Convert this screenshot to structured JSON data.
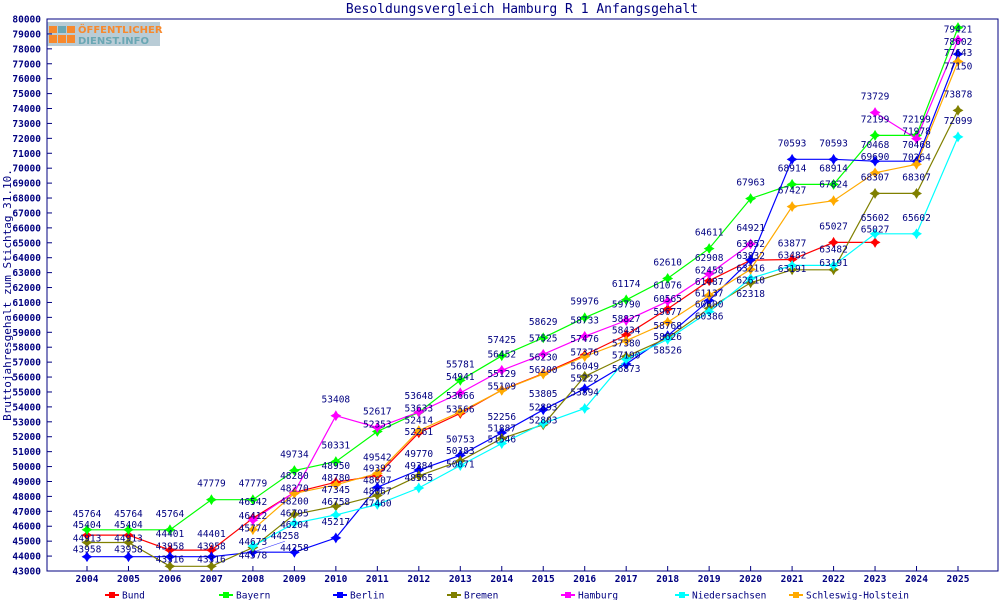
{
  "chart_data": {
    "type": "line",
    "title": "Besoldungsvergleich Hamburg R 1 Anfangsgehalt",
    "ylabel": "Bruttojahresgehalt zum Stichtag 31.10.",
    "xlabel": "",
    "ylim": [
      43000,
      80000
    ],
    "ytick_step": 1000,
    "grid": false,
    "legend_position": "bottom",
    "x": [
      2004,
      2005,
      2006,
      2007,
      2008,
      2009,
      2010,
      2011,
      2012,
      2013,
      2014,
      2015,
      2016,
      2017,
      2018,
      2019,
      2020,
      2021,
      2022,
      2023,
      2024,
      2025
    ],
    "series": [
      {
        "name": "Bund",
        "color": "#ff0000",
        "values": [
          45404,
          45404,
          44401,
          44401,
          46542,
          48270,
          48950,
          49392,
          52261,
          53566,
          55129,
          56230,
          57476,
          58827,
          60565,
          62458,
          63832,
          63877,
          65027,
          65027,
          null,
          null
        ]
      },
      {
        "name": "Bayern",
        "color": "#00ff00",
        "values": [
          45764,
          45764,
          45764,
          47779,
          47779,
          49734,
          50331,
          52353,
          53633,
          55781,
          57425,
          58629,
          59976,
          61174,
          62610,
          64611,
          67963,
          68914,
          68914,
          72199,
          72199,
          79421
        ]
      },
      {
        "name": "Berlin",
        "color": "#0000ff",
        "values": [
          43958,
          43958,
          43958,
          43958,
          44258,
          44258,
          45217,
          48607,
          49770,
          50753,
          52256,
          53805,
          55222,
          56873,
          58768,
          61137,
          63852,
          70593,
          70593,
          70468,
          70468,
          77643
        ]
      },
      {
        "name": "Bremen",
        "color": "#808000",
        "values": [
          44913,
          44913,
          43316,
          43316,
          44578,
          46795,
          47345,
          48067,
          49384,
          50383,
          51887,
          52803,
          56049,
          57380,
          58626,
          60600,
          62318,
          63191,
          63191,
          68307,
          68307,
          73878
        ]
      },
      {
        "name": "Hamburg",
        "color": "#ff00ff",
        "values": [
          null,
          null,
          null,
          null,
          46412,
          48280,
          53408,
          52617,
          53648,
          54941,
          56452,
          57525,
          58733,
          59790,
          61076,
          62908,
          64921,
          null,
          null,
          73729,
          71978,
          78602
        ]
      },
      {
        "name": "Niedersachsen",
        "color": "#00ffff",
        "values": [
          null,
          null,
          null,
          null,
          44673,
          46204,
          46758,
          47460,
          48565,
          50071,
          51546,
          52893,
          53894,
          57190,
          58526,
          60386,
          62610,
          63482,
          63482,
          65602,
          65602,
          72099
        ]
      },
      {
        "name": "Schleswig-Holstein",
        "color": "#ffaa00",
        "values": [
          null,
          null,
          null,
          null,
          45774,
          48200,
          48780,
          49542,
          52414,
          53666,
          55109,
          56200,
          57376,
          58434,
          59677,
          61487,
          63216,
          67427,
          67824,
          69690,
          70264,
          77150
        ]
      }
    ]
  },
  "logo": {
    "line1": "ÖFFENTLICHER",
    "line2": "DIENST.INFO"
  },
  "colors": {
    "axis": "#000080",
    "label": "#000080"
  }
}
